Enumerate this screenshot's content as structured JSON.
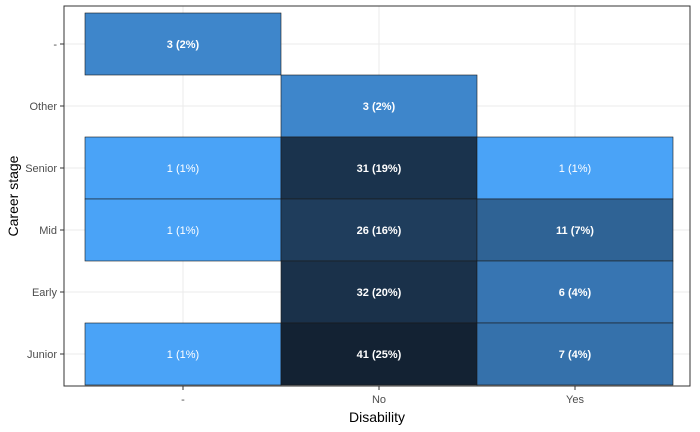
{
  "chart_data": {
    "type": "heatmap",
    "x_categories": [
      "-",
      "No",
      "Yes"
    ],
    "y_categories": [
      "Junior",
      "Early",
      "Mid",
      "Senior",
      "Other",
      "-"
    ],
    "xlabel": "Disability",
    "ylabel": "Career stage",
    "grid": true,
    "legend": "none",
    "color_scale": {
      "low": "#4aa3f7",
      "high": "#132233"
    },
    "cells": [
      {
        "x": "-",
        "y": "-",
        "count": 3,
        "label": "3 (2%)"
      },
      {
        "x": "No",
        "y": "Other",
        "count": 3,
        "label": "3 (2%)"
      },
      {
        "x": "-",
        "y": "Senior",
        "count": 1,
        "label": "1 (1%)"
      },
      {
        "x": "No",
        "y": "Senior",
        "count": 31,
        "label": "31 (19%)"
      },
      {
        "x": "Yes",
        "y": "Senior",
        "count": 1,
        "label": "1 (1%)"
      },
      {
        "x": "-",
        "y": "Mid",
        "count": 1,
        "label": "1 (1%)"
      },
      {
        "x": "No",
        "y": "Mid",
        "count": 26,
        "label": "26 (16%)"
      },
      {
        "x": "Yes",
        "y": "Mid",
        "count": 11,
        "label": "11 (7%)"
      },
      {
        "x": "No",
        "y": "Early",
        "count": 32,
        "label": "32 (20%)"
      },
      {
        "x": "Yes",
        "y": "Early",
        "count": 6,
        "label": "6 (4%)"
      },
      {
        "x": "-",
        "y": "Junior",
        "count": 1,
        "label": "1 (1%)"
      },
      {
        "x": "No",
        "y": "Junior",
        "count": 41,
        "label": "41 (25%)"
      },
      {
        "x": "Yes",
        "y": "Junior",
        "count": 7,
        "label": "7 (4%)"
      }
    ]
  }
}
